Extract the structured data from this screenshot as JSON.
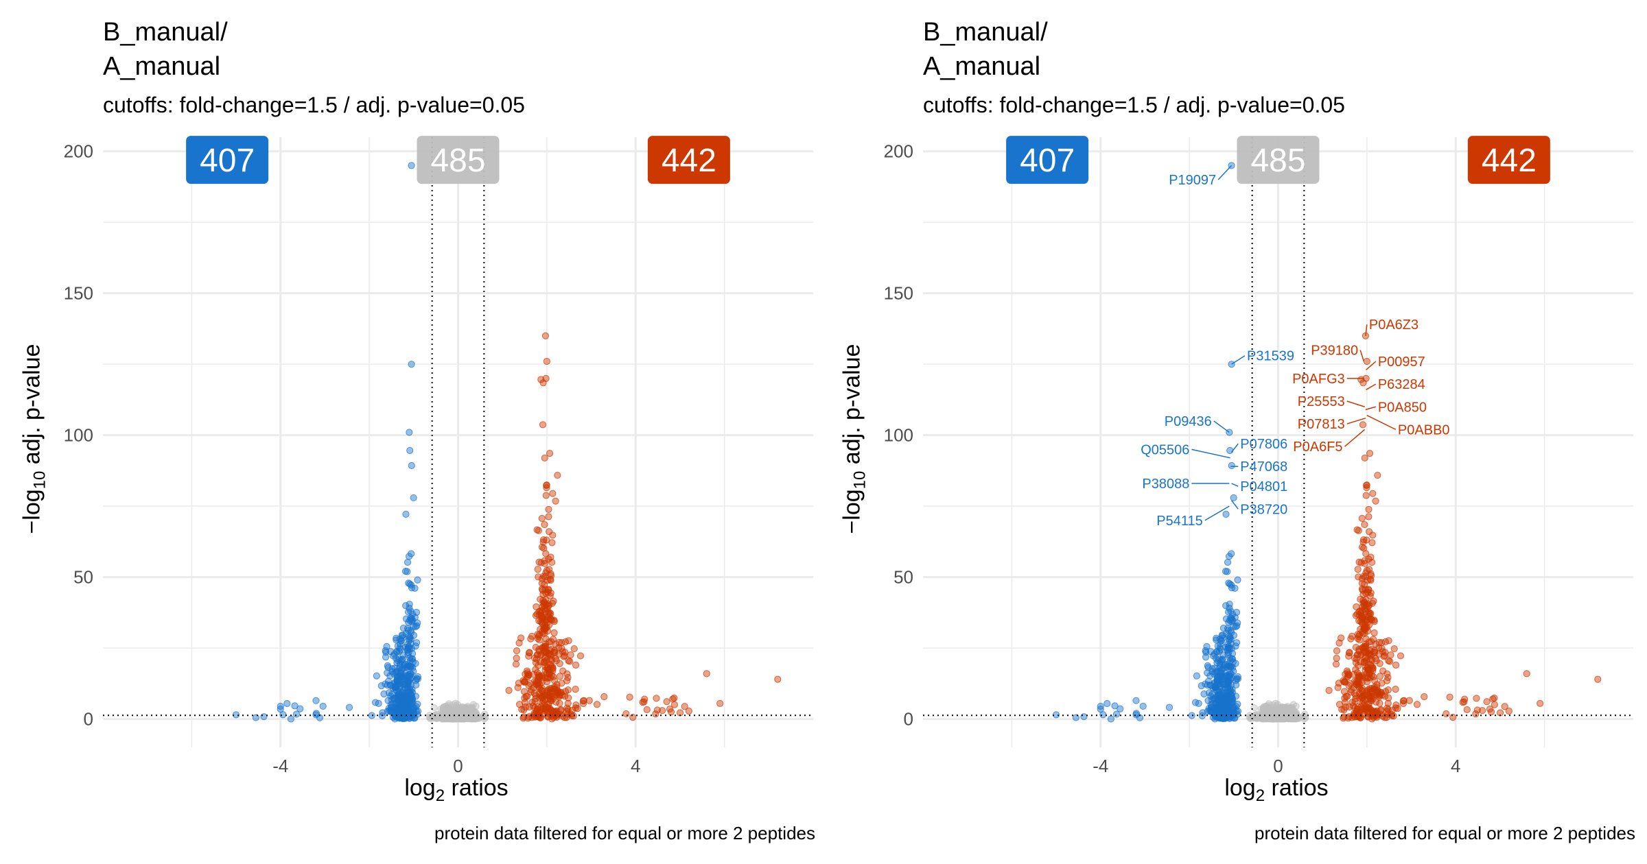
{
  "colors": {
    "down": "#1874CD",
    "up": "#CD3700",
    "ns": "#BEBEBE",
    "grid": "#EBEBEB"
  },
  "chart_data": [
    {
      "type": "scatter",
      "title_line1": "B_manual/",
      "title_line2": "A_manual",
      "subtitle": "cutoffs: fold-change=1.5 / adj. p-value=0.05",
      "caption": "protein data filtered for equal or more 2 peptides",
      "xlabel_main": "log",
      "xlabel_sub": "2",
      "xlabel_rest": " ratios",
      "ylabel_pre": "−log",
      "ylabel_sub": "10",
      "ylabel_rest": " adj. p-value",
      "xlim": [
        -8,
        8
      ],
      "ylim": [
        -10,
        205
      ],
      "xticks": [
        {
          "v": -4,
          "label": "-4"
        },
        {
          "v": 0,
          "label": "0"
        },
        {
          "v": 4,
          "label": "4"
        }
      ],
      "yticks": [
        {
          "v": 0,
          "label": "0"
        },
        {
          "v": 50,
          "label": "50"
        },
        {
          "v": 100,
          "label": "100"
        },
        {
          "v": 150,
          "label": "150"
        },
        {
          "v": 200,
          "label": "200"
        }
      ],
      "vlines": [
        -0.585,
        0.585
      ],
      "hline": 1.3,
      "counts": {
        "down": "407",
        "ns": "485",
        "up": "442"
      },
      "labels": []
    },
    {
      "type": "scatter",
      "title_line1": "B_manual/",
      "title_line2": "A_manual",
      "subtitle": "cutoffs: fold-change=1.5 / adj. p-value=0.05",
      "caption": "protein data filtered for equal or more 2 peptides",
      "xlabel_main": "log",
      "xlabel_sub": "2",
      "xlabel_rest": " ratios",
      "ylabel_pre": "−log",
      "ylabel_sub": "10",
      "ylabel_rest": " adj. p-value",
      "xlim": [
        -8,
        8
      ],
      "ylim": [
        -10,
        205
      ],
      "xticks": [
        {
          "v": -4,
          "label": "-4"
        },
        {
          "v": 0,
          "label": "0"
        },
        {
          "v": 4,
          "label": "4"
        }
      ],
      "yticks": [
        {
          "v": 0,
          "label": "0"
        },
        {
          "v": 50,
          "label": "50"
        },
        {
          "v": 100,
          "label": "100"
        },
        {
          "v": 150,
          "label": "150"
        },
        {
          "v": 200,
          "label": "200"
        }
      ],
      "vlines": [
        -0.585,
        0.585
      ],
      "hline": 1.3,
      "counts": {
        "down": "407",
        "ns": "485",
        "up": "442"
      },
      "labels": [
        {
          "text": "P19097",
          "x": -1.05,
          "y": 195,
          "lx": -1.35,
          "ly": 190,
          "group": "down"
        },
        {
          "text": "P31539",
          "x": -1.05,
          "y": 125,
          "lx": -0.75,
          "ly": 128,
          "group": "down"
        },
        {
          "text": "P09436",
          "x": -1.1,
          "y": 101,
          "lx": -1.45,
          "ly": 105,
          "group": "down"
        },
        {
          "text": "P07806",
          "x": -1.05,
          "y": 94,
          "lx": -0.9,
          "ly": 97,
          "group": "down"
        },
        {
          "text": "Q05506",
          "x": -1.08,
          "y": 92,
          "lx": -1.95,
          "ly": 95,
          "group": "down"
        },
        {
          "text": "P47068",
          "x": -1.07,
          "y": 89,
          "lx": -0.9,
          "ly": 89,
          "group": "down"
        },
        {
          "text": "P38088",
          "x": -1.1,
          "y": 83,
          "lx": -1.95,
          "ly": 83,
          "group": "down"
        },
        {
          "text": "P04801",
          "x": -1.05,
          "y": 83,
          "lx": -0.9,
          "ly": 82,
          "group": "down"
        },
        {
          "text": "P38720",
          "x": -1.05,
          "y": 77,
          "lx": -0.9,
          "ly": 74,
          "group": "down"
        },
        {
          "text": "P54115",
          "x": -1.1,
          "y": 75,
          "lx": -1.65,
          "ly": 70,
          "group": "down"
        },
        {
          "text": "P0A6Z3",
          "x": 1.97,
          "y": 135,
          "lx": 2.0,
          "ly": 139,
          "group": "up"
        },
        {
          "text": "P39180",
          "x": 1.93,
          "y": 126,
          "lx": 1.85,
          "ly": 130,
          "group": "up"
        },
        {
          "text": "P00957",
          "x": 1.98,
          "y": 123,
          "lx": 2.2,
          "ly": 126,
          "group": "up"
        },
        {
          "text": "P0AFG3",
          "x": 1.94,
          "y": 120,
          "lx": 1.55,
          "ly": 120,
          "group": "up"
        },
        {
          "text": "P63284",
          "x": 1.98,
          "y": 116,
          "lx": 2.2,
          "ly": 118,
          "group": "up"
        },
        {
          "text": "P25553",
          "x": 1.95,
          "y": 110,
          "lx": 1.55,
          "ly": 112,
          "group": "up"
        },
        {
          "text": "P0A850",
          "x": 1.97,
          "y": 109,
          "lx": 2.2,
          "ly": 110,
          "group": "up"
        },
        {
          "text": "P07813",
          "x": 1.97,
          "y": 106,
          "lx": 1.55,
          "ly": 104,
          "group": "up"
        },
        {
          "text": "P0ABB0",
          "x": 2.0,
          "y": 107,
          "lx": 2.65,
          "ly": 102,
          "group": "up"
        },
        {
          "text": "P0A6F5",
          "x": 1.95,
          "y": 102,
          "lx": 1.5,
          "ly": 96,
          "group": "up"
        }
      ]
    }
  ]
}
